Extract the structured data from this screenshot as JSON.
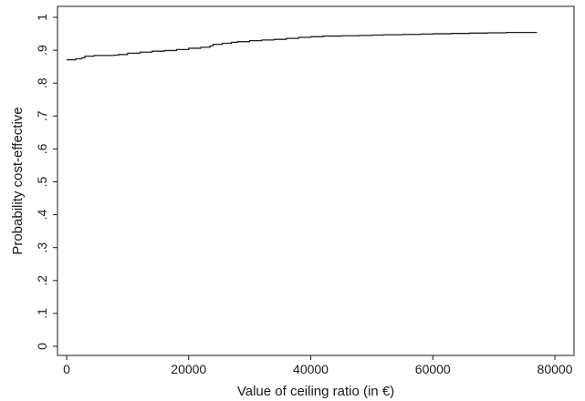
{
  "chart_data": {
    "type": "line",
    "xlabel": "Value of ceiling ratio (in €)",
    "ylabel": "Probability cost-effective",
    "xlim": [
      0,
      80000
    ],
    "ylim": [
      0,
      1
    ],
    "x_ticks": [
      0,
      20000,
      40000,
      60000,
      80000
    ],
    "x_tick_labels": [
      "0",
      "20000",
      "40000",
      "60000",
      "80000"
    ],
    "y_ticks": [
      0,
      0.1,
      0.2,
      0.3,
      0.4,
      0.5,
      0.6,
      0.7,
      0.8,
      0.9,
      1.0
    ],
    "y_tick_labels": [
      "0",
      ".1",
      ".2",
      ".3",
      ".4",
      ".5",
      ".6",
      ".7",
      ".8",
      ".9",
      "1"
    ],
    "grid": false,
    "line_color": "#1f1f1f",
    "series": [
      {
        "x": [
          0,
          1500,
          2500,
          3000,
          4500,
          6000,
          7800,
          8500,
          10000,
          12000,
          14000,
          16000,
          18000,
          20000,
          22000,
          23500,
          24000,
          25500,
          27000,
          28000,
          30000,
          32000,
          34000,
          36000,
          38000,
          40000,
          42000,
          45000,
          48000,
          50000,
          52000,
          55000,
          58000,
          60000,
          63000,
          66000,
          69000,
          72000,
          74000,
          77000
        ],
        "y": [
          0.871,
          0.874,
          0.877,
          0.882,
          0.884,
          0.884,
          0.885,
          0.887,
          0.891,
          0.894,
          0.897,
          0.899,
          0.902,
          0.906,
          0.909,
          0.913,
          0.918,
          0.921,
          0.924,
          0.926,
          0.929,
          0.931,
          0.933,
          0.936,
          0.939,
          0.941,
          0.943,
          0.944,
          0.945,
          0.946,
          0.947,
          0.948,
          0.949,
          0.95,
          0.951,
          0.952,
          0.953,
          0.954,
          0.954,
          0.955
        ]
      }
    ]
  }
}
